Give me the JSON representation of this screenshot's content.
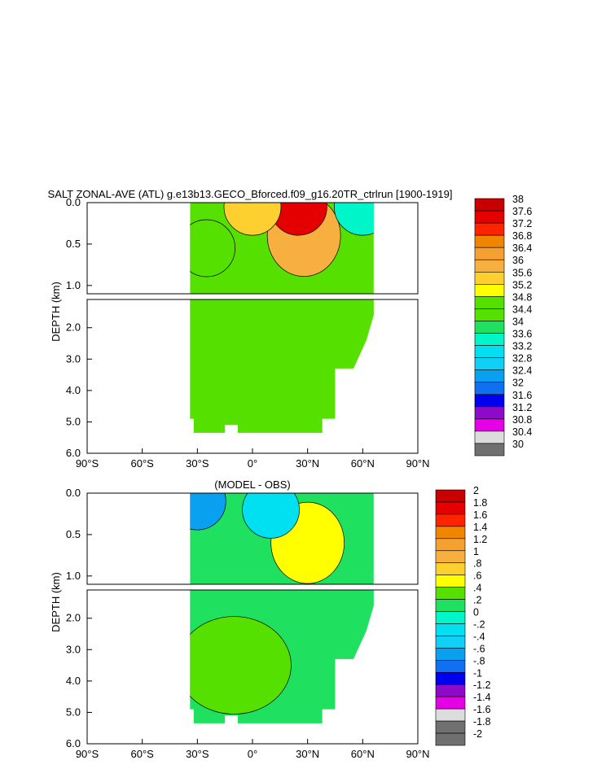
{
  "chart_data": [
    {
      "type": "heatmap",
      "title": "SALT ZONAL-AVE (ATL) g.e13b13.GECO_Bforced.f09_g16.20TR_ctrlrun [1900-1919]",
      "xlabel": "",
      "ylabel": "DEPTH (km)",
      "xlim": [
        -90,
        90
      ],
      "ylim_upper": [
        0.0,
        1.1
      ],
      "ylim_lower": [
        1.1,
        6.0
      ],
      "x_ticks": [
        -90,
        -60,
        -30,
        0,
        30,
        60,
        90
      ],
      "x_tick_labels": [
        "90°S",
        "60°S",
        "30°S",
        "0°",
        "30°N",
        "60°N",
        "90°N"
      ],
      "y_ticks_upper": [
        0.0,
        0.5,
        1.0
      ],
      "y_tick_labels_upper": [
        "0.0",
        "0.5",
        "1.0"
      ],
      "y_ticks_lower": [
        2.0,
        3.0,
        4.0,
        5.0,
        6.0
      ],
      "y_tick_labels_lower": [
        "2.0",
        "3.0",
        "4.0",
        "5.0",
        "6.0"
      ],
      "colorbar": {
        "levels": [
          "38",
          "37.6",
          "37.2",
          "36.8",
          "36.4",
          "36",
          "35.6",
          "35.2",
          "34.8",
          "34.4",
          "34",
          "33.6",
          "33.2",
          "32.8",
          "32.4",
          "32",
          "31.6",
          "31.2",
          "30.8",
          "30.4",
          "30"
        ],
        "colors": [
          "#c80000",
          "#e40000",
          "#ff2300",
          "#f08500",
          "#f5a030",
          "#f7b040",
          "#fdd030",
          "#ffff00",
          "#55e000",
          "#55e000",
          "#20e060",
          "#00f5c8",
          "#00e0f0",
          "#10d0f8",
          "#0aa0f0",
          "#1070f0",
          "#0000f0",
          "#8c0ac8",
          "#e600e6",
          "#dcdcdc",
          "#707070"
        ]
      },
      "regions": [
        {
          "level": "34.8",
          "note": "background"
        },
        {
          "level": "36",
          "lat_center": 28,
          "depth_center": 0.4
        },
        {
          "level": "37.6",
          "lat_center": 25,
          "depth_center": 0.05
        },
        {
          "level": "34.4",
          "lat_center": -25,
          "depth_center": 0.55
        },
        {
          "level": "35.6",
          "lat_center": 0,
          "depth_center": 0.05
        },
        {
          "level": "33.6",
          "lat_center": 60,
          "depth_center": 0.05
        }
      ]
    },
    {
      "type": "heatmap",
      "title": "(MODEL - OBS)",
      "xlabel": "",
      "ylabel": "DEPTH (km)",
      "xlim": [
        -90,
        90
      ],
      "ylim_upper": [
        0.0,
        1.1
      ],
      "ylim_lower": [
        1.1,
        6.0
      ],
      "x_ticks": [
        -90,
        -60,
        -30,
        0,
        30,
        60,
        90
      ],
      "x_tick_labels": [
        "90°S",
        "60°S",
        "30°S",
        "0°",
        "30°N",
        "60°N",
        "90°N"
      ],
      "y_ticks_upper": [
        0.0,
        0.5,
        1.0
      ],
      "y_tick_labels_upper": [
        "0.0",
        "0.5",
        "1.0"
      ],
      "y_ticks_lower": [
        2.0,
        3.0,
        4.0,
        5.0,
        6.0
      ],
      "y_tick_labels_lower": [
        "2.0",
        "3.0",
        "4.0",
        "5.0",
        "6.0"
      ],
      "colorbar": {
        "levels": [
          "2",
          "1.8",
          "1.6",
          "1.4",
          "1.2",
          "1",
          ".8",
          ".6",
          ".4",
          ".2",
          "0",
          "-.2",
          "-.4",
          "-.6",
          "-.8",
          "-1",
          "-1.2",
          "-1.4",
          "-1.6",
          "-1.8",
          "-2"
        ],
        "colors": [
          "#c80000",
          "#e40000",
          "#ff2300",
          "#f08500",
          "#f5a030",
          "#f7b040",
          "#fdd030",
          "#ffff00",
          "#55e000",
          "#20e060",
          "#00f5c8",
          "#00e0f0",
          "#10d0f8",
          "#0aa0f0",
          "#1070f0",
          "#0000f0",
          "#8c0ac8",
          "#e600e6",
          "#dcdcdc",
          "#707070",
          "#707070"
        ]
      },
      "regions": [
        {
          "level": ".2",
          "note": "background"
        },
        {
          "level": ".6",
          "lat_center": 30,
          "depth_center": 0.6
        },
        {
          "level": "-.6",
          "lat_center": -30,
          "depth_center": 0.1
        },
        {
          "level": "-.2",
          "lat_center": 10,
          "depth_center": 0.2
        },
        {
          "level": ".4",
          "lat_center": -10,
          "depth_center": 3.5
        }
      ]
    }
  ]
}
